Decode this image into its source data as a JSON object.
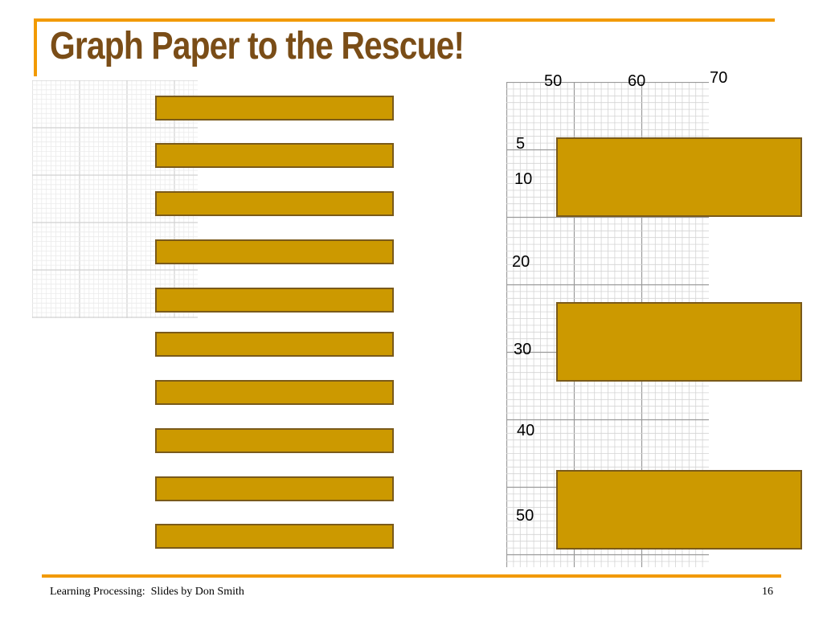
{
  "slide": {
    "title": "Graph Paper to the Rescue!",
    "footer": "Learning Processing:  Slides by Don Smith",
    "page_number": "16"
  },
  "left_bar_count": 10,
  "right_diagram": {
    "x_labels": [
      "50",
      "60",
      "70"
    ],
    "y_labels": [
      "5",
      "10",
      "20",
      "30",
      "40",
      "50"
    ],
    "bar_count": 3
  },
  "colors": {
    "accent": "#f29a00",
    "title": "#7a4d17",
    "bar_fill": "#cc9900",
    "bar_border": "#7a5a1a",
    "grid_minor": "#d4d4d4",
    "grid_major": "#9a9a9a"
  }
}
